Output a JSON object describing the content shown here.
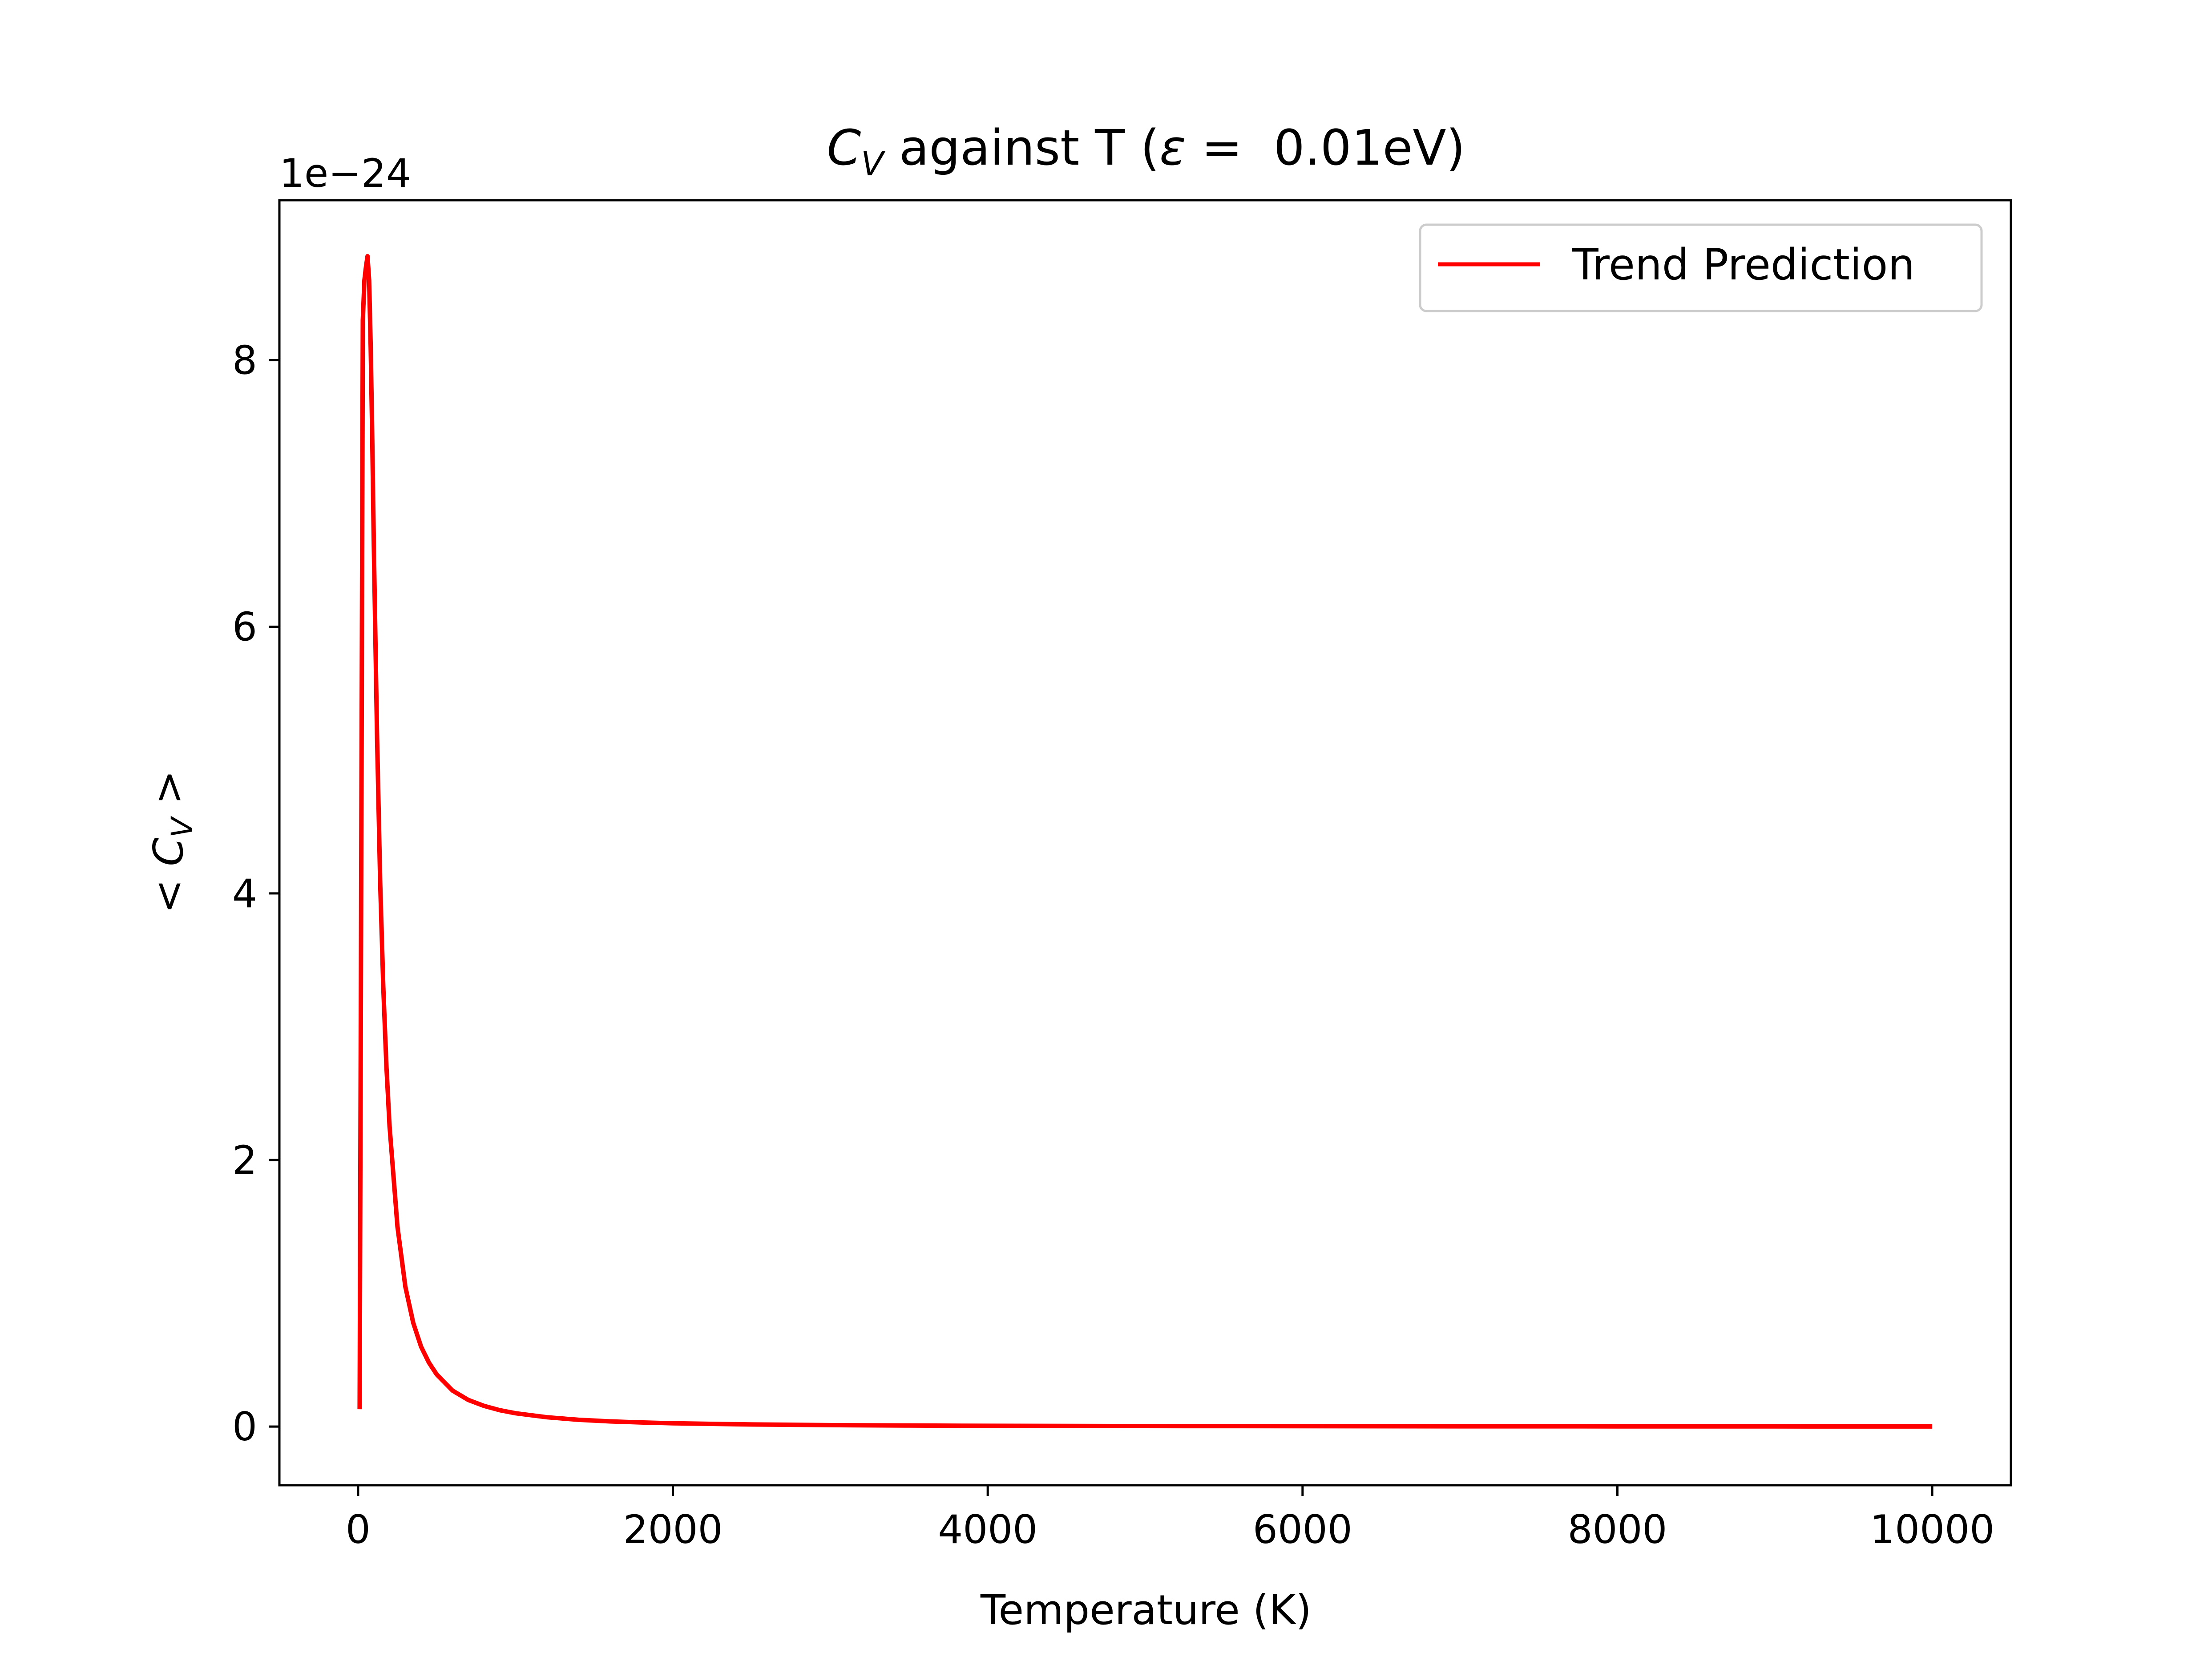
{
  "chart_data": {
    "type": "line",
    "title": "C_V against T (ε =  0.01eV)",
    "title_parts": {
      "symbol": "C",
      "symbol_sub": "V",
      "rest": " against T (",
      "epsilon": "ε",
      "tail": " =  0.01eV)"
    },
    "xlabel": "Temperature (K)",
    "ylabel": "< C_V >",
    "ylabel_parts": {
      "open": "< ",
      "symbol": "C",
      "symbol_sub": "V",
      "close": " >"
    },
    "y_offset_text": "1e−24",
    "xlim": [
      -500,
      10500
    ],
    "ylim": [
      -0.44,
      9.2
    ],
    "y_scale_factor": 1e-24,
    "x_ticks": [
      0,
      2000,
      4000,
      6000,
      8000,
      10000
    ],
    "x_tick_labels": [
      "0",
      "2000",
      "4000",
      "6000",
      "8000",
      "10000"
    ],
    "y_ticks": [
      0,
      2,
      4,
      6,
      8
    ],
    "y_tick_labels": [
      "0",
      "2",
      "4",
      "6",
      "8"
    ],
    "grid": false,
    "legend_position": "top-right",
    "series": [
      {
        "name": "Trend Prediction",
        "color": "#ff0000",
        "x": [
          10,
          20,
          30,
          40,
          50,
          60,
          70,
          80,
          90,
          100,
          120,
          140,
          160,
          180,
          200,
          250,
          300,
          350,
          400,
          450,
          500,
          600,
          700,
          800,
          900,
          1000,
          1200,
          1400,
          1600,
          1800,
          2000,
          2500,
          3000,
          3500,
          4000,
          5000,
          6000,
          7000,
          8000,
          9000,
          10000
        ],
        "y": [
          0.13,
          4.2,
          8.3,
          8.6,
          8.7,
          8.78,
          8.6,
          8.1,
          7.4,
          6.6,
          5.2,
          4.1,
          3.3,
          2.7,
          2.25,
          1.5,
          1.05,
          0.78,
          0.6,
          0.48,
          0.39,
          0.27,
          0.2,
          0.155,
          0.123,
          0.1,
          0.07,
          0.051,
          0.039,
          0.031,
          0.025,
          0.016,
          0.011,
          0.008,
          0.006,
          0.004,
          0.0028,
          0.002,
          0.0016,
          0.0012,
          0.001
        ]
      }
    ]
  }
}
